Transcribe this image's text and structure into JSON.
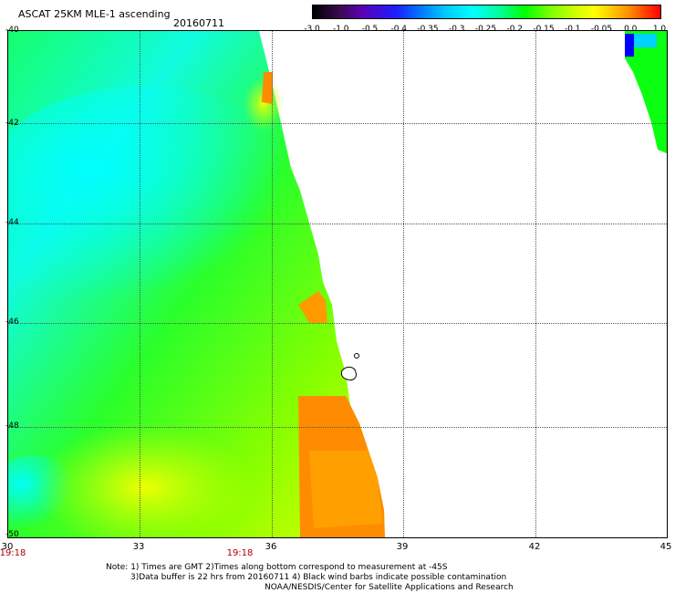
{
  "header": {
    "title": "ASCAT 25KM MLE-1 ascending",
    "date": "20160711"
  },
  "colorbar": {
    "ticks": [
      "-3.0",
      "-1.0",
      "-0.5",
      "-0.4",
      "-0.35",
      "-0.3",
      "-0.25",
      "-0.2",
      "-0.15",
      "-0.1",
      "-0.05",
      "0.0",
      "1.0"
    ]
  },
  "map": {
    "lat_labels": [
      "-40",
      "-42",
      "-44",
      "-46",
      "-48",
      "-50"
    ],
    "lon_labels": [
      "30",
      "33",
      "36",
      "39",
      "42",
      "45"
    ],
    "time_labels": [
      "19:18",
      "19:18"
    ],
    "colors": {
      "low": "#00ffff",
      "mid": "#00ff00",
      "high": "#ffff00",
      "max": "#ff8c00",
      "edge": "#0000ff"
    }
  },
  "footer": {
    "note1": "Note: 1) Times are GMT 2)Times along bottom correspond to measurement at -45S",
    "note2": "3)Data buffer is 22 hrs from 20160711 4) Black wind barbs indicate possible contamination",
    "note3": "NOAA/NESDIS/Center for Satellite Applications and Research"
  }
}
